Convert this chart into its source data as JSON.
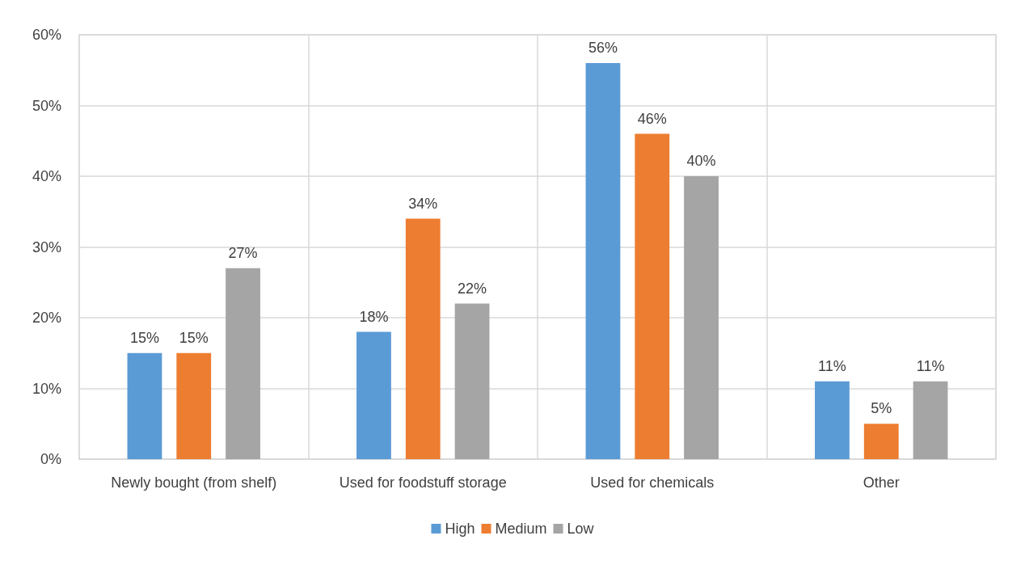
{
  "chart_data": {
    "type": "bar",
    "categories": [
      "Newly bought (from shelf)",
      "Used for foodstuff storage",
      "Used for chemicals",
      "Other"
    ],
    "series": [
      {
        "name": "High",
        "color": "#5b9bd5",
        "values": [
          15,
          18,
          56,
          11
        ],
        "value_labels": [
          "15%",
          "18%",
          "56%",
          "11%"
        ]
      },
      {
        "name": "Medium",
        "color": "#ed7d31",
        "values": [
          15,
          34,
          46,
          5
        ],
        "value_labels": [
          "15%",
          "34%",
          "46%",
          "5%"
        ]
      },
      {
        "name": "Low",
        "color": "#a5a5a5",
        "values": [
          27,
          22,
          40,
          11
        ],
        "value_labels": [
          "27%",
          "22%",
          "40%",
          "11%"
        ]
      }
    ],
    "ylim": [
      0,
      60
    ],
    "yticks": [
      {
        "value": 0,
        "label": "0%"
      },
      {
        "value": 10,
        "label": "10%"
      },
      {
        "value": 20,
        "label": "20%"
      },
      {
        "value": 30,
        "label": "30%"
      },
      {
        "value": 40,
        "label": "40%"
      },
      {
        "value": 50,
        "label": "50%"
      },
      {
        "value": 60,
        "label": "60%"
      }
    ],
    "grid": true,
    "legend": "bottom"
  }
}
